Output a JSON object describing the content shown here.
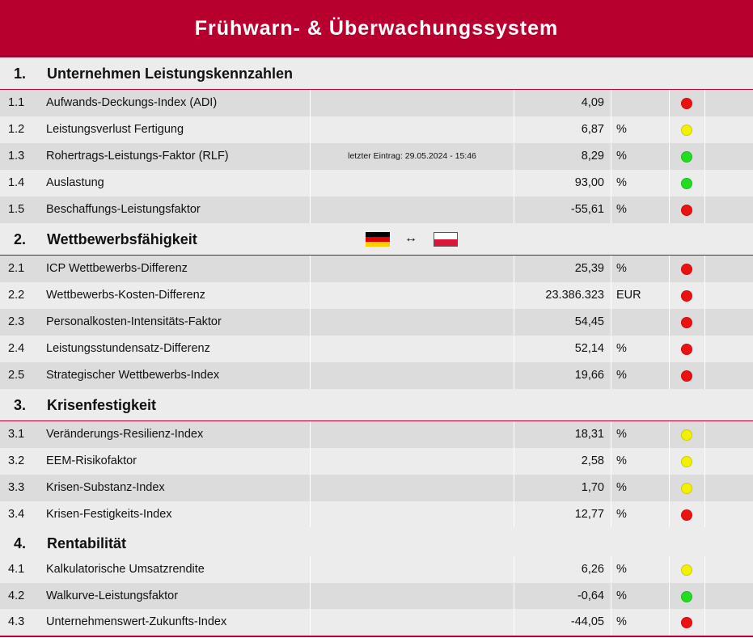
{
  "title": "Frühwarn- & Überwachungssystem",
  "colors": {
    "brand": "#b8002f",
    "red": "#ee1111",
    "yellow": "#f2f200",
    "green": "#22dd22"
  },
  "flags_divider": "↔",
  "flags": [
    "germany-flag",
    "poland-flag"
  ],
  "sections": [
    {
      "num": "1.",
      "title": "Unternehmen Leistungskennzahlen",
      "rows": [
        {
          "num": "1.1",
          "label": "Aufwands-Deckungs-Index (ADI)",
          "note": "",
          "value": "4,09",
          "unit": "",
          "status": "red"
        },
        {
          "num": "1.2",
          "label": "Leistungsverlust Fertigung",
          "note": "",
          "value": "6,87",
          "unit": "%",
          "status": "yellow"
        },
        {
          "num": "1.3",
          "label": "Rohertrags-Leistungs-Faktor (RLF)",
          "note": "letzter Eintrag: 29.05.2024 - 15:46",
          "value": "8,29",
          "unit": "%",
          "status": "green"
        },
        {
          "num": "1.4",
          "label": "Auslastung",
          "note": "",
          "value": "93,00",
          "unit": "%",
          "status": "green"
        },
        {
          "num": "1.5",
          "label": "Beschaffungs-Leistungsfaktor",
          "note": "",
          "value": "-55,61",
          "unit": "%",
          "status": "red"
        }
      ]
    },
    {
      "num": "2.",
      "title": "Wettbewerbsfähigkeit",
      "rows": [
        {
          "num": "2.1",
          "label": "ICP Wettbewerbs-Differenz",
          "note": "",
          "value": "25,39",
          "unit": "%",
          "status": "red"
        },
        {
          "num": "2.2",
          "label": "Wettbewerbs-Kosten-Differenz",
          "note": "",
          "value": "23.386.323",
          "unit": "EUR",
          "status": "red"
        },
        {
          "num": "2.3",
          "label": "Personalkosten-Intensitäts-Faktor",
          "note": "",
          "value": "54,45",
          "unit": "",
          "status": "red"
        },
        {
          "num": "2.4",
          "label": "Leistungsstundensatz-Differenz",
          "note": "",
          "value": "52,14",
          "unit": "%",
          "status": "red"
        },
        {
          "num": "2.5",
          "label": "Strategischer Wettbewerbs-Index",
          "note": "",
          "value": "19,66",
          "unit": "%",
          "status": "red"
        }
      ]
    },
    {
      "num": "3.",
      "title": "Krisenfestigkeit",
      "rows": [
        {
          "num": "3.1",
          "label": "Veränderungs-Resilienz-Index",
          "note": "",
          "value": "18,31",
          "unit": "%",
          "status": "yellow"
        },
        {
          "num": "3.2",
          "label": "EEM-Risikofaktor",
          "note": "",
          "value": "2,58",
          "unit": "%",
          "status": "yellow"
        },
        {
          "num": "3.3",
          "label": "Krisen-Substanz-Index",
          "note": "",
          "value": "1,70",
          "unit": "%",
          "status": "yellow"
        },
        {
          "num": "3.4",
          "label": "Krisen-Festigkeits-Index",
          "note": "",
          "value": "12,77",
          "unit": "%",
          "status": "red"
        }
      ]
    },
    {
      "num": "4.",
      "title": "Rentabilität",
      "rows": [
        {
          "num": "4.1",
          "label": "Kalkulatorische Umsatzrendite",
          "note": "",
          "value": "6,26",
          "unit": "%",
          "status": "yellow"
        },
        {
          "num": "4.2",
          "label": "Walkurve-Leistungsfaktor",
          "note": "",
          "value": "-0,64",
          "unit": "%",
          "status": "green"
        },
        {
          "num": "4.3",
          "label": "Unternehmenswert-Zukunfts-Index",
          "note": "",
          "value": "-44,05",
          "unit": "%",
          "status": "red"
        }
      ]
    }
  ]
}
